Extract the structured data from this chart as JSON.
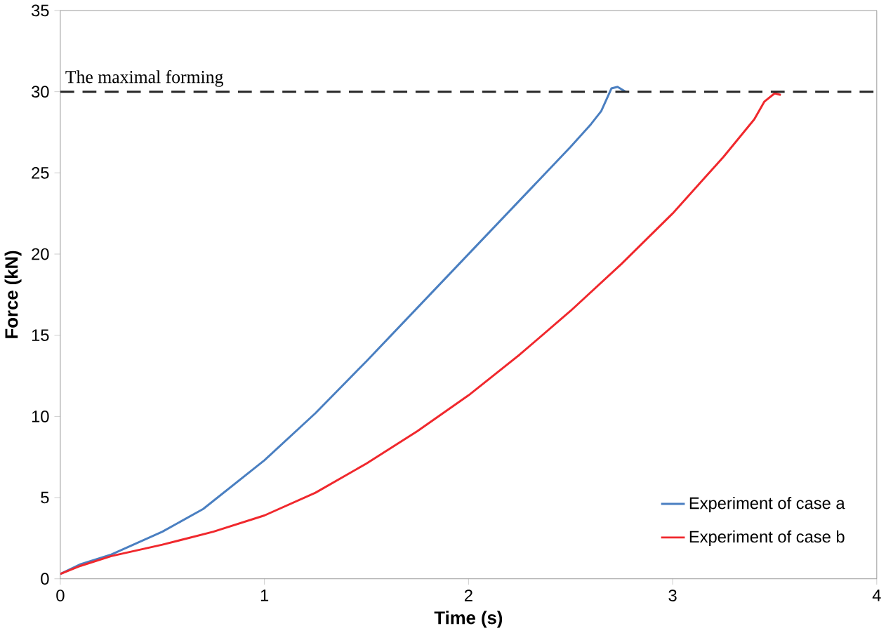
{
  "chart_data": {
    "type": "line",
    "xlabel": "Time (s)",
    "ylabel": "Force (kN)",
    "xlim": [
      0,
      4
    ],
    "ylim": [
      0,
      35
    ],
    "xticks": [
      0,
      1,
      2,
      3,
      4
    ],
    "yticks": [
      0,
      5,
      10,
      15,
      20,
      25,
      30,
      35
    ],
    "legend": "bottom right",
    "marker": "none",
    "line_style": "solid",
    "ref_lines": [
      {
        "axis": "y",
        "value": 30,
        "label": "The maximal forming",
        "color": "#262626",
        "line_style": "dashed"
      }
    ],
    "series": [
      {
        "name": "Experiment of case a",
        "color": "#4a7fc1",
        "x": [
          0,
          0.1,
          0.25,
          0.5,
          0.7,
          1,
          1.25,
          1.5,
          1.75,
          2,
          2.25,
          2.5,
          2.6,
          2.65,
          2.7,
          2.73,
          2.77
        ],
        "values": [
          0.3,
          0.9,
          1.5,
          2.9,
          4.3,
          7.3,
          10.2,
          13.4,
          16.7,
          20,
          23.3,
          26.6,
          28,
          28.8,
          30.2,
          30.3,
          30
        ]
      },
      {
        "name": "Experiment of case b",
        "color": "#f0282d",
        "x": [
          0,
          0.1,
          0.25,
          0.5,
          0.75,
          1,
          1.25,
          1.5,
          1.75,
          2,
          2.25,
          2.5,
          2.75,
          3,
          3.25,
          3.4,
          3.45,
          3.5,
          3.53
        ],
        "values": [
          0.3,
          0.8,
          1.4,
          2.1,
          2.9,
          3.9,
          5.3,
          7.1,
          9.1,
          11.3,
          13.8,
          16.5,
          19.4,
          22.5,
          26,
          28.3,
          29.4,
          29.9,
          29.8
        ]
      }
    ]
  }
}
